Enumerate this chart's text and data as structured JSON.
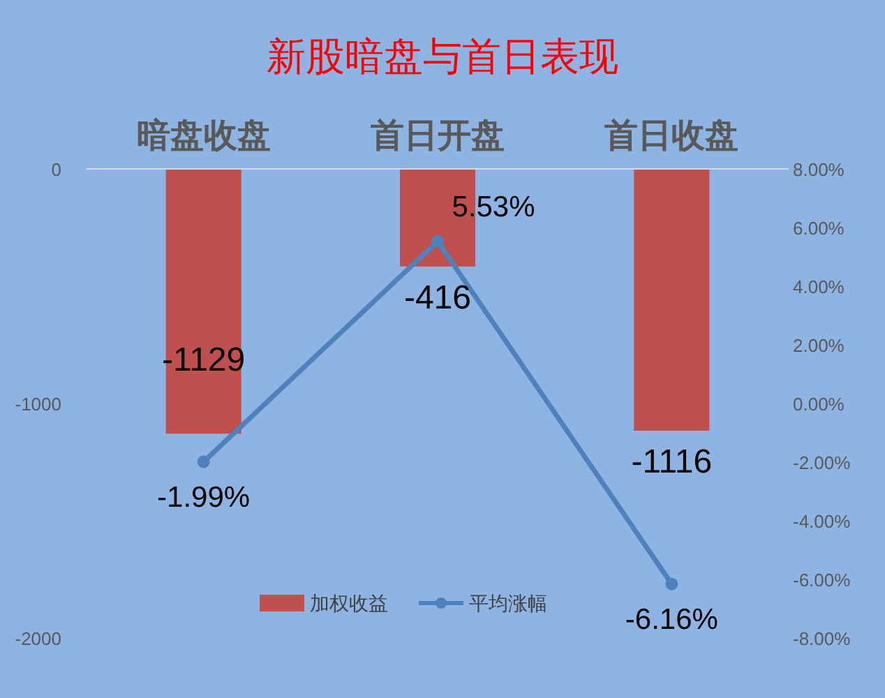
{
  "chart_data": {
    "type": "bar",
    "title": "新股暗盘与首日表现",
    "categories": [
      "暗盘收盘",
      "首日开盘",
      "首日收盘"
    ],
    "ylim": [
      -2000,
      0
    ],
    "yticks": [
      -2000,
      -1000,
      0
    ],
    "y2lim": [
      -8,
      8
    ],
    "y2ticks": [
      {
        "value": 8,
        "label": "8.00%"
      },
      {
        "value": 6,
        "label": "6.00%"
      },
      {
        "value": 4,
        "label": "4.00%"
      },
      {
        "value": 2,
        "label": "2.00%"
      },
      {
        "value": 0,
        "label": "0.00%"
      },
      {
        "value": -2,
        "label": "-2.00%"
      },
      {
        "value": -4,
        "label": "-4.00%"
      },
      {
        "value": -6,
        "label": "-6.00%"
      },
      {
        "value": -8,
        "label": "-8.00%"
      }
    ],
    "legend": "bottom",
    "marker": "circle",
    "grid": false,
    "series": [
      {
        "name": "加权收益",
        "color": "#c0504d",
        "values": [
          -1129,
          -416,
          -1116
        ],
        "value_labels": [
          "-1129",
          "-416",
          "-1116"
        ]
      },
      {
        "name": "平均涨幅",
        "type": "line",
        "axis": "y2",
        "color": "#4f81bd",
        "values": [
          -1.99,
          5.53,
          -6.16
        ],
        "value_labels": [
          "-1.99%",
          "5.53%",
          "-6.16%"
        ]
      }
    ]
  }
}
